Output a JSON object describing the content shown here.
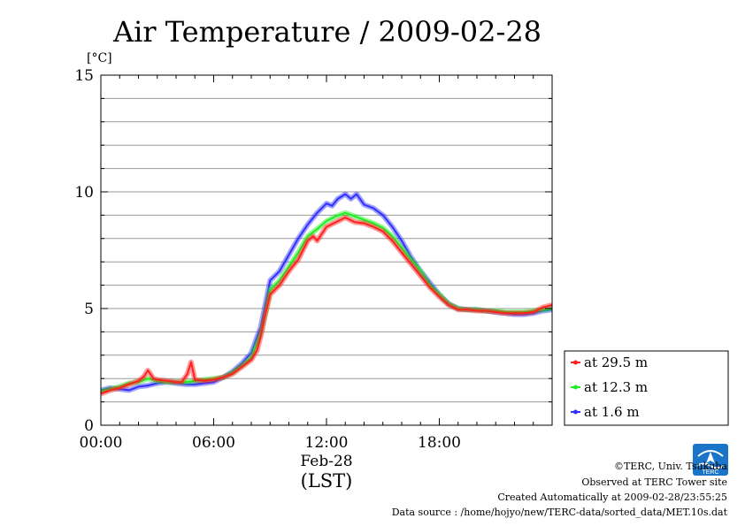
{
  "chart_data": {
    "type": "line",
    "title": "Air Temperature / 2009-02-28",
    "ylabel": "[°C]",
    "ylim": [
      0,
      15
    ],
    "yticks": [
      0,
      5,
      10,
      15
    ],
    "xlim": [
      0,
      24
    ],
    "xticks": [
      {
        "value": 0,
        "label": "00:00"
      },
      {
        "value": 6,
        "label": "06:00"
      },
      {
        "value": 12,
        "label": "12:00"
      },
      {
        "value": 18,
        "label": "18:00"
      }
    ],
    "date_label": "Feb-28",
    "time_zone_label": "(LST)",
    "grid": true,
    "legend_position": "right",
    "series": [
      {
        "name": "at 29.5 m",
        "color": "#ff2020",
        "x": [
          0,
          0.5,
          1,
          1.5,
          2,
          2.3,
          2.5,
          2.8,
          3,
          3.5,
          4,
          4.3,
          4.6,
          4.8,
          5,
          5.5,
          6,
          6.5,
          7,
          7.5,
          8,
          8.3,
          8.5,
          8.7,
          9,
          9.5,
          10,
          10.5,
          11,
          11.3,
          11.5,
          12,
          12.5,
          13,
          13.5,
          14,
          14.5,
          15,
          15.5,
          16,
          16.5,
          17,
          17.5,
          18,
          18.5,
          19,
          19.5,
          20,
          20.5,
          21,
          21.5,
          22,
          22.5,
          23,
          23.5,
          24
        ],
        "y": [
          1.35,
          1.5,
          1.6,
          1.75,
          1.9,
          2.1,
          2.35,
          2.0,
          1.95,
          1.9,
          1.85,
          1.85,
          2.2,
          2.7,
          1.95,
          1.9,
          1.95,
          2.05,
          2.2,
          2.5,
          2.8,
          3.2,
          3.8,
          4.6,
          5.6,
          6.0,
          6.6,
          7.1,
          7.9,
          8.1,
          7.9,
          8.5,
          8.7,
          8.9,
          8.7,
          8.65,
          8.5,
          8.3,
          7.9,
          7.4,
          6.9,
          6.4,
          5.9,
          5.5,
          5.15,
          4.95,
          4.95,
          4.9,
          4.9,
          4.85,
          4.8,
          4.8,
          4.8,
          4.85,
          5.05,
          5.15
        ]
      },
      {
        "name": "at 12.3 m",
        "color": "#20ee20",
        "x": [
          0,
          0.5,
          1,
          1.5,
          2,
          2.5,
          3,
          3.5,
          4,
          4.5,
          5,
          5.5,
          6,
          6.5,
          7,
          7.5,
          8,
          8.5,
          8.7,
          9,
          9.5,
          10,
          10.5,
          11,
          11.5,
          12,
          12.5,
          13,
          13.5,
          14,
          14.5,
          15,
          15.5,
          16,
          16.5,
          17,
          17.5,
          18,
          18.5,
          19,
          19.5,
          20,
          20.5,
          21,
          21.5,
          22,
          22.5,
          23,
          23.5,
          24
        ],
        "y": [
          1.45,
          1.55,
          1.65,
          1.8,
          1.85,
          2.0,
          1.9,
          1.85,
          1.85,
          1.85,
          1.9,
          1.95,
          2.0,
          2.05,
          2.25,
          2.55,
          2.9,
          3.9,
          4.6,
          5.8,
          6.2,
          6.8,
          7.4,
          8.1,
          8.4,
          8.75,
          8.95,
          9.1,
          8.95,
          8.8,
          8.65,
          8.45,
          8.1,
          7.6,
          7.1,
          6.6,
          6.0,
          5.6,
          5.2,
          5.0,
          4.95,
          4.95,
          4.9,
          4.9,
          4.85,
          4.85,
          4.85,
          4.9,
          4.95,
          5.0
        ]
      },
      {
        "name": "at 1.6 m",
        "color": "#3030ff",
        "x": [
          0,
          0.5,
          1,
          1.5,
          2,
          2.5,
          3,
          3.5,
          4,
          4.5,
          5,
          5.5,
          6,
          6.5,
          7,
          7.5,
          8,
          8.5,
          8.7,
          9,
          9.5,
          10,
          10.5,
          11,
          11.5,
          12,
          12.3,
          12.6,
          13,
          13.3,
          13.6,
          14,
          14.5,
          15,
          15.5,
          16,
          16.5,
          17,
          17.5,
          18,
          18.5,
          19,
          19.5,
          20,
          20.5,
          21,
          21.5,
          22,
          22.5,
          23,
          23.5,
          24
        ],
        "y": [
          1.5,
          1.6,
          1.55,
          1.5,
          1.65,
          1.7,
          1.8,
          1.85,
          1.8,
          1.75,
          1.75,
          1.8,
          1.85,
          2.05,
          2.3,
          2.65,
          3.1,
          4.2,
          5.0,
          6.2,
          6.6,
          7.3,
          8.0,
          8.6,
          9.1,
          9.5,
          9.4,
          9.7,
          9.9,
          9.7,
          9.9,
          9.45,
          9.3,
          9.0,
          8.5,
          7.9,
          7.2,
          6.6,
          6.1,
          5.6,
          5.2,
          5.0,
          4.95,
          4.95,
          4.9,
          4.85,
          4.8,
          4.75,
          4.75,
          4.8,
          4.9,
          4.95
        ]
      }
    ]
  },
  "credits": {
    "copyright": "©TERC, Univ. Tsukuba",
    "observed": "Observed at TERC Tower site",
    "created": "Created Automatically at 2009-02-28/23:55:25",
    "source": "Data source : /home/hojyo/new/TERC-data/sorted_data/MET.10s.dat"
  },
  "logo": {
    "text": "TERC",
    "color": "#1a75c8"
  }
}
